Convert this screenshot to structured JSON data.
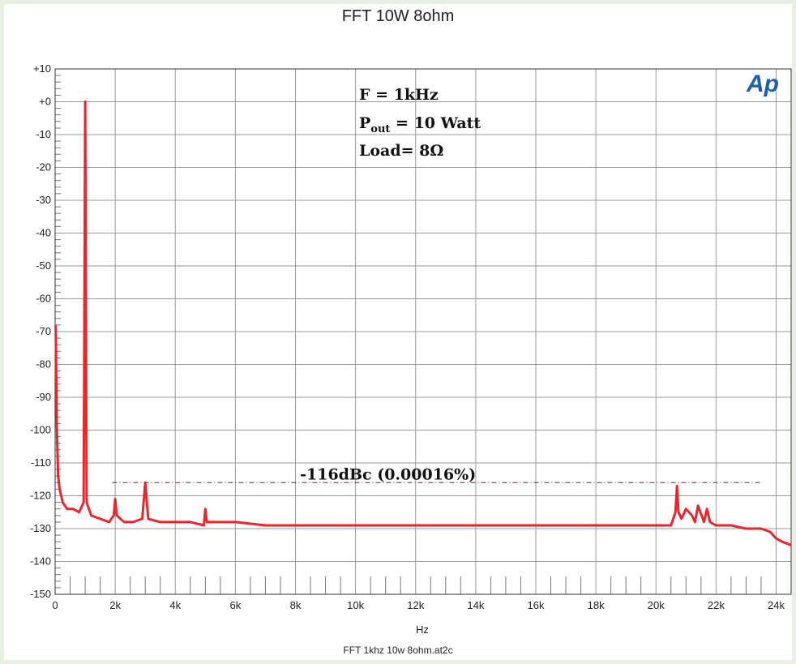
{
  "chart_data": {
    "type": "line",
    "title": "FFT 10W 8ohm",
    "xlabel": "Hz",
    "ylabel": "",
    "footer": "FFT 1khz 10w 8ohm.at2c",
    "xlim": [
      0,
      24500
    ],
    "ylim": [
      -150,
      10
    ],
    "grid": true,
    "x_ticks": [
      0,
      2000,
      4000,
      6000,
      8000,
      10000,
      12000,
      14000,
      16000,
      18000,
      20000,
      22000,
      24000
    ],
    "x_tick_labels": [
      "0",
      "2k",
      "4k",
      "6k",
      "8k",
      "10k",
      "12k",
      "14k",
      "16k",
      "18k",
      "20k",
      "22k",
      "24k"
    ],
    "y_ticks": [
      10,
      0,
      -10,
      -20,
      -30,
      -40,
      -50,
      -60,
      -70,
      -80,
      -90,
      -100,
      -110,
      -120,
      -130,
      -140,
      -150
    ],
    "y_tick_labels": [
      "+10",
      "+0",
      "-10",
      "-20",
      "-30",
      "-40",
      "-50",
      "-60",
      "-70",
      "-80",
      "-90",
      "-100",
      "-110",
      "-120",
      "-130",
      "-140",
      "-150"
    ],
    "series": [
      {
        "color": "#e8262b",
        "x": [
          20,
          60,
          100,
          150,
          250,
          400,
          600,
          800,
          950,
          1000,
          1050,
          1200,
          1500,
          1800,
          1950,
          2000,
          2050,
          2300,
          2600,
          2900,
          3000,
          3100,
          3500,
          4000,
          4500,
          4950,
          5000,
          5050,
          5500,
          6000,
          7000,
          8000,
          9000,
          10000,
          11000,
          12000,
          13000,
          14000,
          15000,
          16000,
          17000,
          18000,
          19000,
          20000,
          20500,
          20650,
          20700,
          20750,
          20850,
          21000,
          21200,
          21300,
          21400,
          21600,
          21700,
          21800,
          22000,
          22500,
          23000,
          23500,
          23800,
          24000,
          24200,
          24500
        ],
        "y": [
          -68,
          -100,
          -114,
          -118,
          -122,
          -124,
          -124,
          -125,
          -122,
          0,
          -122,
          -126,
          -127,
          -128,
          -126,
          -121,
          -126,
          -128,
          -128,
          -127,
          -116,
          -127,
          -128,
          -128,
          -128,
          -129,
          -124,
          -128,
          -128,
          -128,
          -129,
          -129,
          -129,
          -129,
          -129,
          -129,
          -129,
          -129,
          -129,
          -129,
          -129,
          -129,
          -129,
          -129,
          -129,
          -125,
          -117,
          -125,
          -127,
          -124,
          -126,
          -128,
          -123,
          -128,
          -124,
          -128,
          -129,
          -129,
          -130,
          -130,
          -131,
          -133,
          -134,
          -135
        ]
      }
    ],
    "annotations": {
      "line1": "F = 1kHz",
      "line2_main": "P",
      "line2_sub": "out",
      "line2_rest": " = 10 Watt",
      "line3": "Load= 8Ω",
      "reference_label": "-116dBc (0.00016%)",
      "reference_level": -116,
      "reference_from": 1900,
      "reference_to": 23500
    },
    "logo": "Ap"
  }
}
